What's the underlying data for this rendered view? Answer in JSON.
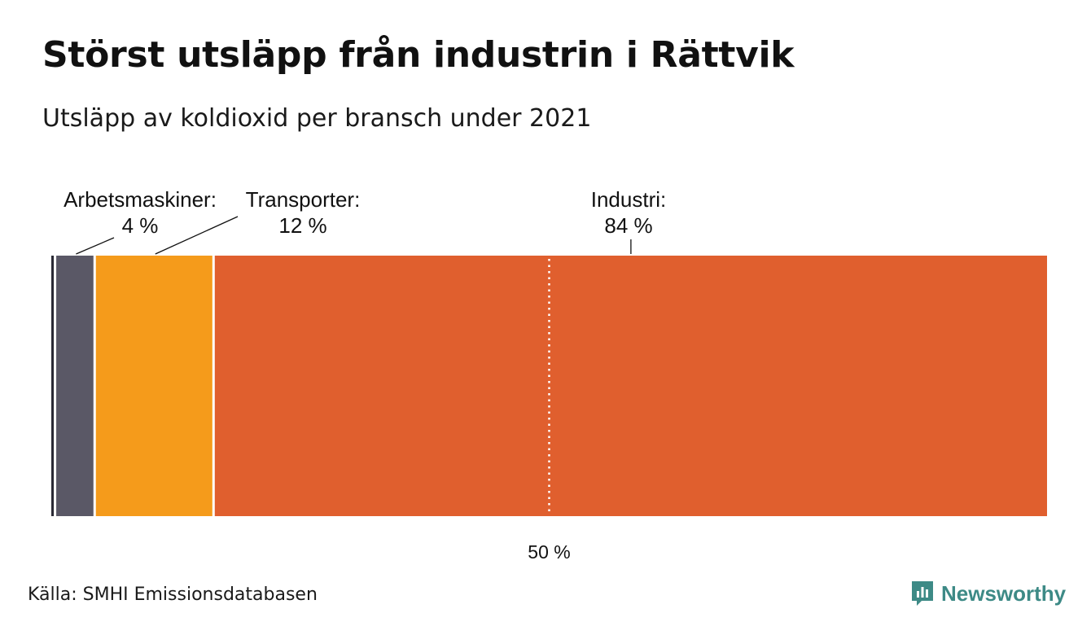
{
  "title": "Störst utsläpp från industrin i Rättvik",
  "subtitle": "Utsläpp av koldioxid per bransch under 2021",
  "source": "Källa: SMHI Emissionsdatabasen",
  "logo": {
    "name": "Newsworthy",
    "icon": "newsworthy-logo-icon",
    "color": "#3d8a86"
  },
  "chart_data": {
    "type": "bar",
    "orientation": "horizontal-stacked-100",
    "unit": "%",
    "series": [
      {
        "name": "",
        "value": 0.5,
        "color": "#2b2b36"
      },
      {
        "name": "Arbetsmaskiner",
        "value": 4,
        "label": "Arbetsmaskiner:",
        "value_label": "4 %",
        "color": "#5a5866"
      },
      {
        "name": "Transporter",
        "value": 12,
        "label": "Transporter:",
        "value_label": "12 %",
        "color": "#f59b1b"
      },
      {
        "name": "Industri",
        "value": 84,
        "label": "Industri:",
        "value_label": "84 %",
        "color": "#e05f2e"
      }
    ],
    "reference_line": {
      "value": 50,
      "label": "50 %"
    },
    "xlim": [
      0,
      100
    ]
  }
}
